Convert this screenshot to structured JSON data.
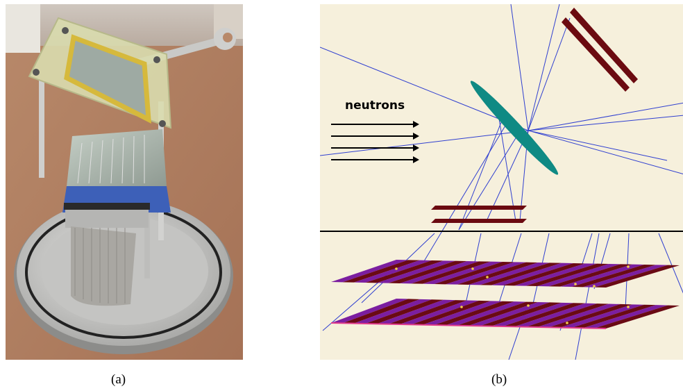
{
  "figure": {
    "panels": [
      {
        "label": "(a)",
        "content": "photograph"
      },
      {
        "label": "(b)",
        "content": "simulation-rendering",
        "annotation": "neutrons"
      }
    ]
  },
  "colors": {
    "sim_background": "#f6f0dc",
    "track_line": "#2f3fd0",
    "sample_ellipse": "#0f8a84",
    "detector_strip": "#6b0a10",
    "plane_stripe_a": "#7b1ea0",
    "plane_stripe_b": "#6a0a14"
  },
  "icons": [
    "neutron-arrow-icon"
  ]
}
